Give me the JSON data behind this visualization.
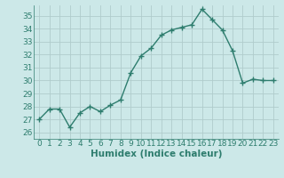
{
  "x": [
    0,
    1,
    2,
    3,
    4,
    5,
    6,
    7,
    8,
    9,
    10,
    11,
    12,
    13,
    14,
    15,
    16,
    17,
    18,
    19,
    20,
    21,
    22,
    23
  ],
  "y": [
    27.0,
    27.8,
    27.8,
    26.4,
    27.5,
    28.0,
    27.6,
    28.1,
    28.5,
    30.6,
    31.9,
    32.5,
    33.5,
    33.9,
    34.1,
    34.3,
    35.5,
    34.7,
    33.9,
    32.3,
    29.8,
    30.1,
    30.0,
    30.0
  ],
  "line_color": "#2e7d6e",
  "marker": "+",
  "marker_size": 4,
  "marker_linewidth": 1.0,
  "line_width": 1.0,
  "xlabel": "Humidex (Indice chaleur)",
  "xlabel_fontsize": 7.5,
  "xlim": [
    -0.5,
    23.5
  ],
  "ylim": [
    25.5,
    35.8
  ],
  "yticks": [
    26,
    27,
    28,
    29,
    30,
    31,
    32,
    33,
    34,
    35
  ],
  "xticks": [
    0,
    1,
    2,
    3,
    4,
    5,
    6,
    7,
    8,
    9,
    10,
    11,
    12,
    13,
    14,
    15,
    16,
    17,
    18,
    19,
    20,
    21,
    22,
    23
  ],
  "bg_color": "#cce8e8",
  "grid_color": "#b0cccc",
  "tick_fontsize": 6.5,
  "tick_color": "#2e7d6e"
}
